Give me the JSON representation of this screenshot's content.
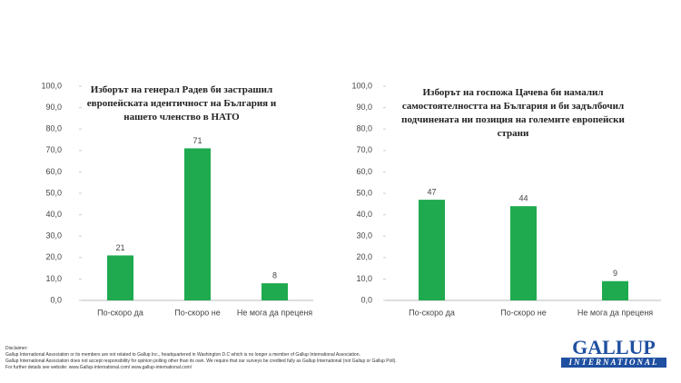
{
  "chart_data": [
    {
      "type": "bar",
      "title": "Изборът на генерал Радев би застрашил европейската идентичност на България и нашето членство в НАТО",
      "categories": [
        "По-скоро да",
        "По-скоро не",
        "Не мога да преценя"
      ],
      "values": [
        21,
        71,
        8
      ],
      "color": "#1faa4f",
      "ylim": [
        0,
        100
      ],
      "yticks": [
        {
          "value": 0,
          "label": "0,0"
        },
        {
          "value": 10,
          "label": "10,0"
        },
        {
          "value": 20,
          "label": "20,0"
        },
        {
          "value": 30,
          "label": "30,0"
        },
        {
          "value": 40,
          "label": "40,0"
        },
        {
          "value": 50,
          "label": "50,0"
        },
        {
          "value": 60,
          "label": "60,0"
        },
        {
          "value": 70,
          "label": "70,0"
        },
        {
          "value": 80,
          "label": "80,0"
        },
        {
          "value": 90,
          "label": "90,0"
        },
        {
          "value": 100,
          "label": "100,0"
        }
      ]
    },
    {
      "type": "bar",
      "title": "Изборът на госпожа Цачева би намалил самостоятелността на България и би задълбочил подчинената ни позиция на големите европейски страни",
      "categories": [
        "По-скоро да",
        "По-скоро не",
        "Не мога да преценя"
      ],
      "values": [
        47,
        44,
        9
      ],
      "color": "#1faa4f",
      "ylim": [
        0,
        100
      ],
      "yticks": [
        {
          "value": 0,
          "label": "0,0"
        },
        {
          "value": 10,
          "label": "10,0"
        },
        {
          "value": 20,
          "label": "20,0"
        },
        {
          "value": 30,
          "label": "30,0"
        },
        {
          "value": 40,
          "label": "40,0"
        },
        {
          "value": 50,
          "label": "50,0"
        },
        {
          "value": 60,
          "label": "60,0"
        },
        {
          "value": 70,
          "label": "70,0"
        },
        {
          "value": 80,
          "label": "80,0"
        },
        {
          "value": 90,
          "label": "90,0"
        },
        {
          "value": 100,
          "label": "100,0"
        }
      ]
    }
  ],
  "disclaimer": [
    "Disclaimer:",
    "Gallup International Association or its members are not related to Gallup Inc., headquartered in Washington D.C which is no longer a member of Gallup International Association.",
    "Gallup International Association does not accept responsibility for opinion polling other than its own. We require that our surveys be credited fully as Gallup International (not Gallup or Gallup Poll).",
    "For further details see website: www.Gallup-international.com/ www.gallup-international.com/"
  ],
  "logo": {
    "main": "GALLUP",
    "sub": "INTERNATIONAL"
  }
}
